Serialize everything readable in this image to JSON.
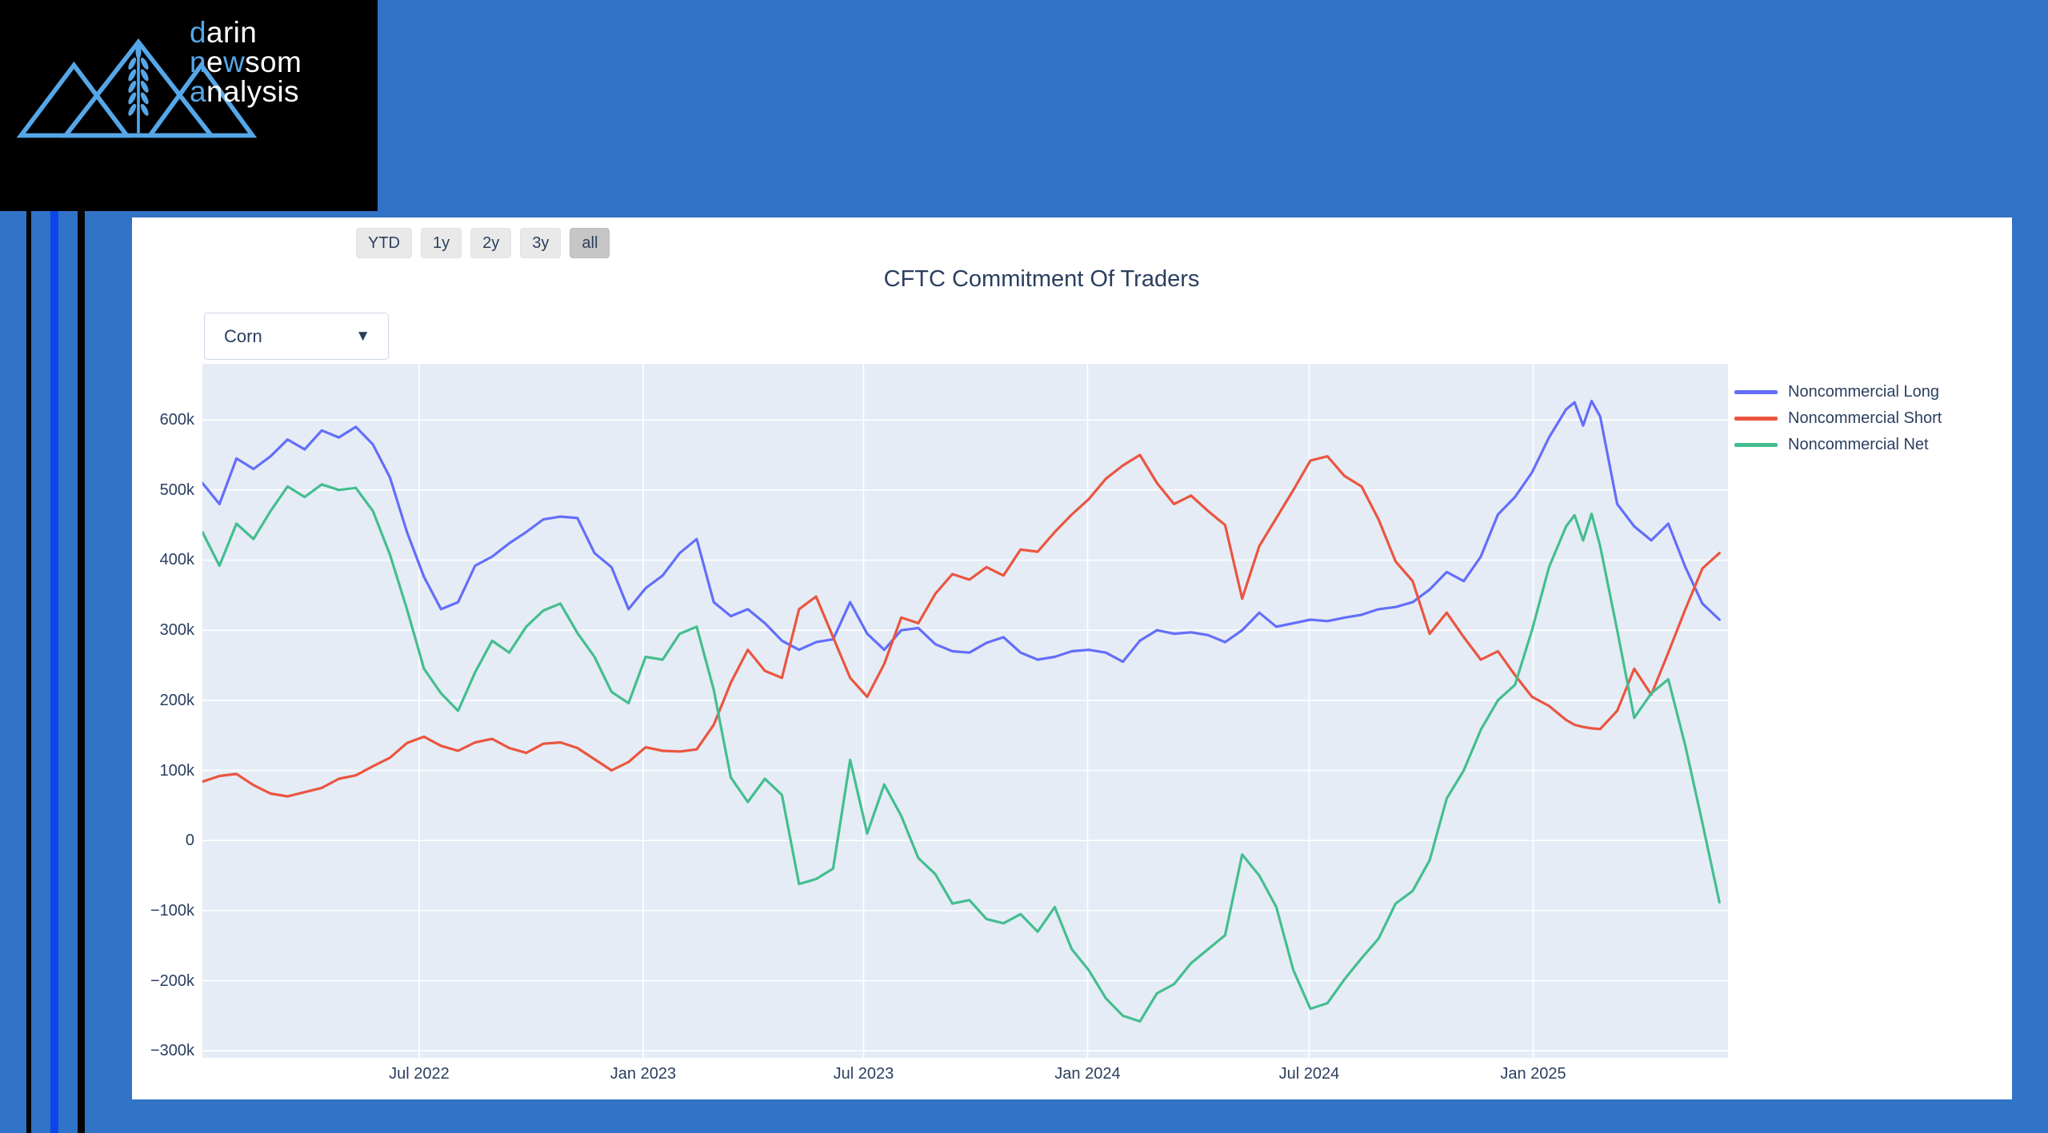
{
  "colors": {
    "background": "#3173C7",
    "stripe_black": "#050505",
    "stripe_bright_blue": "#0B46EB",
    "card": "#FFFFFF",
    "plot_background": "#E5ECF6",
    "gridline": "#FFFFFF",
    "text": "#2A3F5F",
    "logo_accent": "#55A7E8",
    "button_bg": "#E9E9E9",
    "button_active_bg": "#C6C6C6"
  },
  "logo": {
    "icon": "three-mountains-with-wheat",
    "lines": [
      [
        {
          "t": "d",
          "accent": true
        },
        {
          "t": "arin",
          "accent": false
        }
      ],
      [
        {
          "t": "n",
          "accent": true
        },
        {
          "t": "e",
          "accent": false
        },
        {
          "t": "w",
          "accent": true
        },
        {
          "t": "som",
          "accent": false
        }
      ],
      [
        {
          "t": "a",
          "accent": true
        },
        {
          "t": "nalysis",
          "accent": false
        }
      ]
    ]
  },
  "toolbar": {
    "range_buttons": [
      {
        "label": "YTD",
        "active": false
      },
      {
        "label": "1y",
        "active": false
      },
      {
        "label": "2y",
        "active": false
      },
      {
        "label": "3y",
        "active": false
      },
      {
        "label": "all",
        "active": true
      }
    ]
  },
  "chart": {
    "title": "CFTC Commitment Of Traders",
    "dropdown": {
      "value": "Corn",
      "caret": "▼"
    }
  },
  "chart_data": {
    "type": "line",
    "title": "CFTC Commitment Of Traders",
    "xlabel": "",
    "ylabel": "",
    "units": "contracts, thousands (k)",
    "grid": true,
    "legend_position": "right",
    "x_range": [
      "2022-01-04",
      "2025-06-10"
    ],
    "ylim": [
      -310,
      680
    ],
    "yticks": [
      {
        "label": "600k",
        "value": 600
      },
      {
        "label": "500k",
        "value": 500
      },
      {
        "label": "400k",
        "value": 400
      },
      {
        "label": "300k",
        "value": 300
      },
      {
        "label": "200k",
        "value": 200
      },
      {
        "label": "100k",
        "value": 100
      },
      {
        "label": "0",
        "value": 0
      },
      {
        "label": "−100k",
        "value": -100
      },
      {
        "label": "−200k",
        "value": -200
      },
      {
        "label": "−300k",
        "value": -300
      }
    ],
    "xticks": [
      {
        "label": "Jul 2022",
        "date": "2022-07-01"
      },
      {
        "label": "Jan 2023",
        "date": "2023-01-01"
      },
      {
        "label": "Jul 2023",
        "date": "2023-07-01"
      },
      {
        "label": "Jan 2024",
        "date": "2024-01-01"
      },
      {
        "label": "Jul 2024",
        "date": "2024-07-01"
      },
      {
        "label": "Jan 2025",
        "date": "2025-01-01"
      }
    ],
    "x": [
      "2022-01-04",
      "2022-01-18",
      "2022-02-01",
      "2022-02-15",
      "2022-03-01",
      "2022-03-15",
      "2022-03-29",
      "2022-04-12",
      "2022-04-26",
      "2022-05-10",
      "2022-05-24",
      "2022-06-07",
      "2022-06-21",
      "2022-07-05",
      "2022-07-19",
      "2022-08-02",
      "2022-08-16",
      "2022-08-30",
      "2022-09-13",
      "2022-09-27",
      "2022-10-11",
      "2022-10-25",
      "2022-11-08",
      "2022-11-22",
      "2022-12-06",
      "2022-12-20",
      "2023-01-03",
      "2023-01-17",
      "2023-01-31",
      "2023-02-14",
      "2023-02-28",
      "2023-03-14",
      "2023-03-28",
      "2023-04-11",
      "2023-04-25",
      "2023-05-09",
      "2023-05-23",
      "2023-06-06",
      "2023-06-20",
      "2023-07-04",
      "2023-07-18",
      "2023-08-01",
      "2023-08-15",
      "2023-08-29",
      "2023-09-12",
      "2023-09-26",
      "2023-10-10",
      "2023-10-24",
      "2023-11-07",
      "2023-11-21",
      "2023-12-05",
      "2023-12-19",
      "2024-01-02",
      "2024-01-16",
      "2024-01-30",
      "2024-02-13",
      "2024-02-27",
      "2024-03-12",
      "2024-03-26",
      "2024-04-09",
      "2024-04-23",
      "2024-05-07",
      "2024-05-21",
      "2024-06-04",
      "2024-06-18",
      "2024-07-02",
      "2024-07-16",
      "2024-07-30",
      "2024-08-13",
      "2024-08-27",
      "2024-09-10",
      "2024-09-24",
      "2024-10-08",
      "2024-10-22",
      "2024-11-05",
      "2024-11-19",
      "2024-12-03",
      "2024-12-17",
      "2024-12-31",
      "2025-01-14",
      "2025-01-28",
      "2025-02-04",
      "2025-02-11",
      "2025-02-18",
      "2025-02-25",
      "2025-03-11",
      "2025-03-25",
      "2025-04-08",
      "2025-04-22",
      "2025-05-06",
      "2025-05-20",
      "2025-06-03"
    ],
    "series": [
      {
        "name": "Noncommercial Long",
        "color": "#636EFA",
        "values": [
          510,
          480,
          545,
          530,
          548,
          572,
          558,
          585,
          575,
          590,
          565,
          518,
          440,
          376,
          330,
          340,
          392,
          405,
          424,
          440,
          458,
          462,
          460,
          410,
          390,
          330,
          360,
          378,
          410,
          430,
          340,
          320,
          330,
          310,
          285,
          272,
          283,
          287,
          340,
          295,
          272,
          300,
          303,
          280,
          270,
          268,
          282,
          290,
          268,
          258,
          262,
          270,
          272,
          268,
          255,
          285,
          300,
          295,
          297,
          293,
          283,
          300,
          325,
          305,
          310,
          315,
          313,
          318,
          322,
          330,
          333,
          340,
          358,
          383,
          370,
          405,
          465,
          490,
          525,
          575,
          615,
          625,
          592,
          627,
          605,
          480,
          448,
          428,
          452,
          390,
          338,
          315
        ]
      },
      {
        "name": "Noncommercial Short",
        "color": "#EB553F",
        "values": [
          84,
          92,
          95,
          79,
          67,
          63,
          69,
          75,
          88,
          93,
          106,
          118,
          139,
          148,
          135,
          128,
          140,
          145,
          132,
          125,
          138,
          140,
          132,
          116,
          100,
          112,
          133,
          128,
          127,
          130,
          165,
          225,
          272,
          242,
          232,
          330,
          348,
          290,
          232,
          205,
          252,
          318,
          310,
          352,
          380,
          372,
          390,
          378,
          415,
          412,
          440,
          465,
          487,
          516,
          535,
          550,
          510,
          480,
          492,
          470,
          450,
          345,
          420,
          460,
          500,
          542,
          548,
          520,
          505,
          458,
          398,
          370,
          295,
          325,
          290,
          258,
          270,
          236,
          205,
          192,
          172,
          165,
          162,
          160,
          159,
          185,
          245,
          208,
          268,
          330,
          388,
          410
        ]
      },
      {
        "name": "Noncommercial Net",
        "color": "#44BE8F",
        "values": [
          440,
          392,
          452,
          430,
          470,
          505,
          490,
          508,
          500,
          503,
          470,
          408,
          330,
          245,
          210,
          185,
          240,
          285,
          268,
          305,
          328,
          338,
          296,
          262,
          212,
          196,
          262,
          258,
          295,
          305,
          215,
          90,
          55,
          88,
          65,
          -62,
          -55,
          -40,
          115,
          10,
          80,
          35,
          -25,
          -48,
          -90,
          -85,
          -112,
          -118,
          -105,
          -130,
          -95,
          -155,
          -185,
          -225,
          -250,
          -258,
          -218,
          -205,
          -175,
          -155,
          -135,
          -20,
          -50,
          -95,
          -185,
          -240,
          -232,
          -198,
          -168,
          -140,
          -90,
          -72,
          -28,
          60,
          100,
          158,
          200,
          222,
          300,
          390,
          448,
          464,
          428,
          466,
          420,
          300,
          175,
          210,
          230,
          135,
          25,
          -88
        ]
      }
    ]
  }
}
